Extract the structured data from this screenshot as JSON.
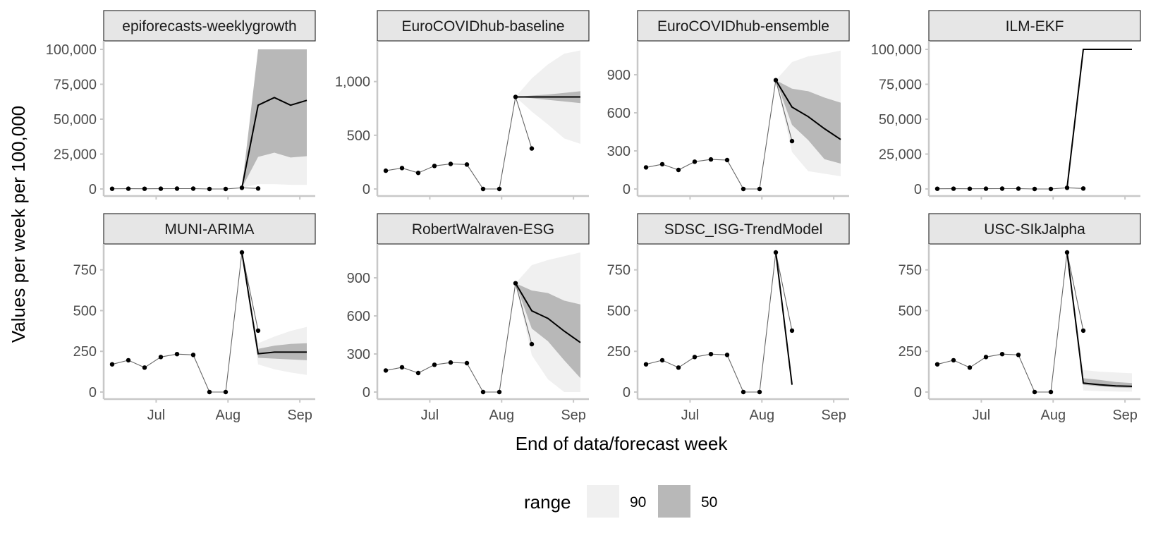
{
  "chart_data": {
    "type": "line",
    "xlabel": "End of data/forecast week",
    "ylabel": "Values per week per 100,000",
    "x_tick_labels": [
      "Jul",
      "Aug",
      "Sep"
    ],
    "observed_weeks": [
      "2021-06-12",
      "2021-06-19",
      "2021-06-26",
      "2021-07-03",
      "2021-07-10",
      "2021-07-17",
      "2021-07-24",
      "2021-07-31",
      "2021-08-07",
      "2021-08-14"
    ],
    "forecast_weeks": [
      "2021-08-07",
      "2021-08-14",
      "2021-08-21",
      "2021-08-28",
      "2021-09-04"
    ],
    "legend": {
      "title": "range",
      "entries": [
        {
          "label": "90",
          "color": "#f0f0f0"
        },
        {
          "label": "50",
          "color": "#b8b8b8"
        }
      ]
    },
    "colors": {
      "interval_90": "#f0f0f0",
      "interval_50": "#b8b8b8",
      "line": "#000000",
      "observed": "#555555",
      "strip_fill": "#e6e6e6",
      "axis": "#c8c8c8"
    },
    "panels": [
      {
        "model": "epiforecasts-weeklygrowth",
        "y_ticks": [
          0,
          25000,
          50000,
          75000,
          100000
        ],
        "y_tick_labels": [
          "0",
          "25,000",
          "50,000",
          "75,000",
          "100,000"
        ],
        "ylim": [
          0,
          100000
        ],
        "observed": [
          170,
          195,
          150,
          215,
          233,
          228,
          0,
          0,
          857,
          377
        ],
        "median": [
          857,
          60000,
          65500,
          60000,
          63500
        ],
        "q50": [
          [
            857,
            857
          ],
          [
            23000,
            100000
          ],
          [
            26000,
            100000
          ],
          [
            22500,
            100000
          ],
          [
            23500,
            100000
          ]
        ],
        "q90": [
          [
            857,
            857
          ],
          [
            3500,
            100000
          ],
          [
            3500,
            100000
          ],
          [
            3000,
            100000
          ],
          [
            3000,
            100000
          ]
        ]
      },
      {
        "model": "EuroCOVIDhub-baseline",
        "y_ticks": [
          0,
          500,
          1000
        ],
        "y_tick_labels": [
          "0",
          "500",
          "1,000"
        ],
        "ylim": [
          0,
          1300
        ],
        "observed": [
          170,
          195,
          150,
          215,
          233,
          228,
          0,
          0,
          857,
          377
        ],
        "median": [
          857,
          857,
          857,
          857,
          857
        ],
        "q50": [
          [
            857,
            857
          ],
          [
            845,
            870
          ],
          [
            830,
            880
          ],
          [
            815,
            895
          ],
          [
            800,
            910
          ]
        ],
        "q90": [
          [
            857,
            857
          ],
          [
            720,
            1030
          ],
          [
            600,
            1160
          ],
          [
            470,
            1260
          ],
          [
            420,
            1290
          ]
        ]
      },
      {
        "model": "EuroCOVIDhub-ensemble",
        "y_ticks": [
          0,
          300,
          600,
          900
        ],
        "y_tick_labels": [
          "0",
          "300",
          "600",
          "900"
        ],
        "ylim": [
          0,
          1100
        ],
        "observed": [
          170,
          195,
          150,
          215,
          233,
          228,
          0,
          0,
          857,
          377
        ],
        "median": [
          857,
          645,
          570,
          475,
          390
        ],
        "q50": [
          [
            857,
            857
          ],
          [
            505,
            790
          ],
          [
            385,
            770
          ],
          [
            235,
            720
          ],
          [
            200,
            680
          ]
        ],
        "q90": [
          [
            857,
            857
          ],
          [
            290,
            1000
          ],
          [
            140,
            1045
          ],
          [
            120,
            1065
          ],
          [
            100,
            1090
          ]
        ]
      },
      {
        "model": "ILM-EKF",
        "y_ticks": [
          0,
          25000,
          50000,
          75000,
          100000
        ],
        "y_tick_labels": [
          "0",
          "25,000",
          "50,000",
          "75,000",
          "100,000"
        ],
        "ylim": [
          0,
          100000
        ],
        "observed": [
          170,
          195,
          150,
          215,
          233,
          228,
          0,
          0,
          857,
          377
        ],
        "median": [
          857,
          100000,
          100000,
          100000,
          100000
        ],
        "q50": [
          [
            857,
            857
          ],
          [
            100000,
            100000
          ],
          [
            100000,
            100000
          ],
          [
            100000,
            100000
          ],
          [
            100000,
            100000
          ]
        ],
        "q90": [
          [
            857,
            857
          ],
          [
            100000,
            100000
          ],
          [
            100000,
            100000
          ],
          [
            100000,
            100000
          ],
          [
            100000,
            100000
          ]
        ]
      },
      {
        "model": "MUNI-ARIMA",
        "y_ticks": [
          0,
          250,
          500,
          750
        ],
        "y_tick_labels": [
          "0",
          "250",
          "500",
          "750"
        ],
        "ylim": [
          0,
          857
        ],
        "observed": [
          170,
          195,
          150,
          215,
          233,
          228,
          0,
          0,
          857,
          377
        ],
        "median": [
          857,
          235,
          245,
          245,
          245
        ],
        "q50": [
          [
            857,
            857
          ],
          [
            210,
            265
          ],
          [
            205,
            285
          ],
          [
            200,
            295
          ],
          [
            195,
            300
          ]
        ],
        "q90": [
          [
            857,
            857
          ],
          [
            170,
            300
          ],
          [
            140,
            340
          ],
          [
            120,
            375
          ],
          [
            105,
            400
          ]
        ]
      },
      {
        "model": "RobertWalraven-ESG",
        "y_ticks": [
          0,
          300,
          600,
          900
        ],
        "y_tick_labels": [
          "0",
          "300",
          "600",
          "900"
        ],
        "ylim": [
          0,
          1100
        ],
        "observed": [
          170,
          195,
          150,
          215,
          233,
          228,
          0,
          0,
          857,
          377
        ],
        "median": [
          857,
          640,
          580,
          480,
          390
        ],
        "q50": [
          [
            857,
            857
          ],
          [
            500,
            800
          ],
          [
            400,
            780
          ],
          [
            250,
            720
          ],
          [
            110,
            690
          ]
        ],
        "q90": [
          [
            857,
            857
          ],
          [
            290,
            1000
          ],
          [
            100,
            1040
          ],
          [
            0,
            1070
          ],
          [
            0,
            1100
          ]
        ]
      },
      {
        "model": "SDSC_ISG-TrendModel",
        "y_ticks": [
          0,
          250,
          500,
          750
        ],
        "y_tick_labels": [
          "0",
          "250",
          "500",
          "750"
        ],
        "ylim": [
          0,
          857
        ],
        "observed": [
          170,
          195,
          150,
          215,
          233,
          228,
          0,
          0,
          857,
          377
        ],
        "median": [
          857,
          45
        ],
        "q50": [
          [
            857,
            857
          ],
          [
            40,
            50
          ]
        ],
        "q90": [
          [
            857,
            857
          ],
          [
            30,
            60
          ]
        ]
      },
      {
        "model": "USC-SIkJalpha",
        "y_ticks": [
          0,
          250,
          500,
          750
        ],
        "y_tick_labels": [
          "0",
          "250",
          "500",
          "750"
        ],
        "ylim": [
          0,
          857
        ],
        "observed": [
          170,
          195,
          150,
          215,
          233,
          228,
          0,
          0,
          857,
          377
        ],
        "median": [
          857,
          55,
          45,
          38,
          35
        ],
        "q50": [
          [
            857,
            857
          ],
          [
            45,
            85
          ],
          [
            35,
            75
          ],
          [
            28,
            62
          ],
          [
            25,
            55
          ]
        ],
        "q90": [
          [
            857,
            857
          ],
          [
            10,
            135
          ],
          [
            5,
            125
          ],
          [
            3,
            120
          ],
          [
            2,
            115
          ]
        ]
      }
    ]
  }
}
